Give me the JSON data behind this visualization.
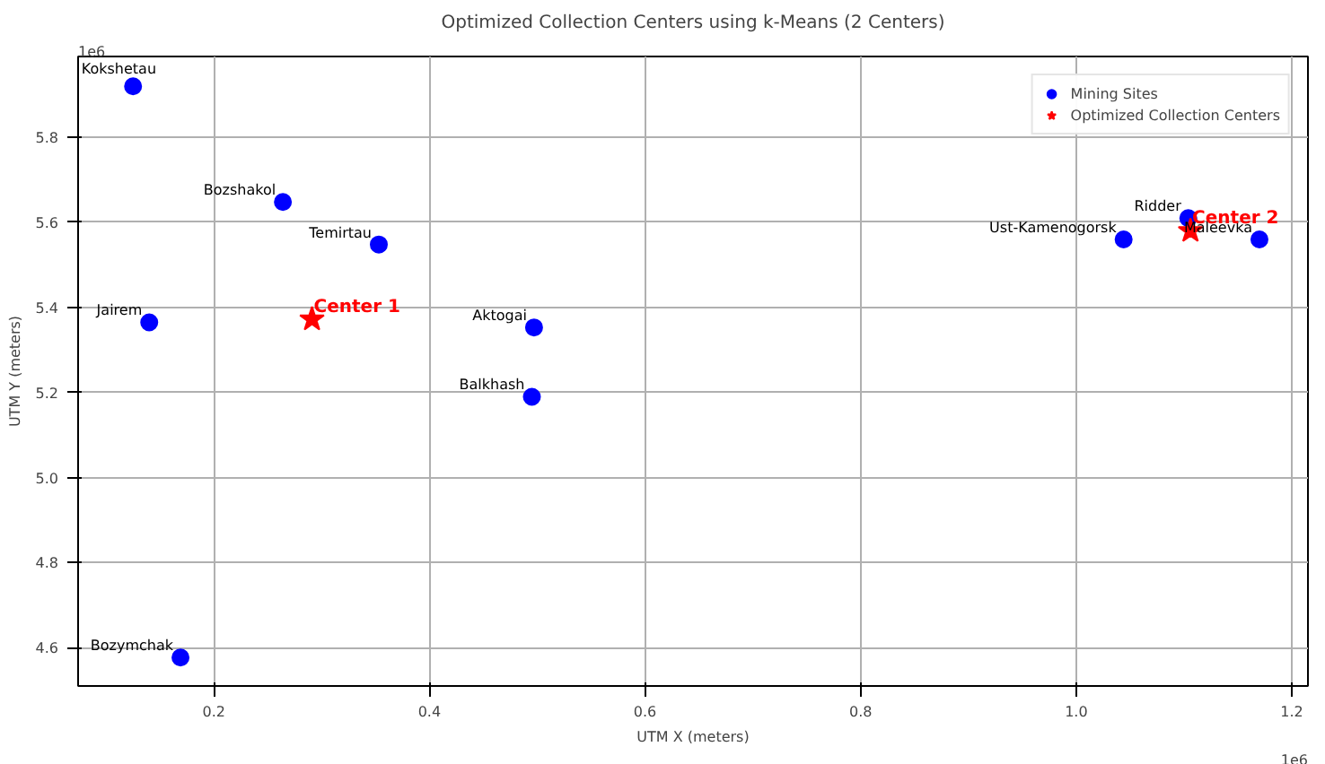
{
  "chart_data": {
    "type": "scatter",
    "title": "Optimized Collection Centers using k-Means (2 Centers)",
    "xlabel": "UTM X (meters)",
    "ylabel": "UTM Y (meters)",
    "xlim": [
      0.074,
      1.215
    ],
    "ylim": [
      4.51,
      5.99
    ],
    "xticks": [
      0.2,
      0.4,
      0.6,
      0.8,
      {
        "value": 1,
        "label": "1.0"
      },
      1.2
    ],
    "yticks": [
      4.6,
      4.8,
      {
        "value": 5,
        "label": "5.0"
      },
      5.2,
      5.4,
      5.6,
      5.8
    ],
    "grid": true,
    "legend": "top right",
    "series": [
      {
        "name": "Mining Sites",
        "color": "#0000ff",
        "marker": "circle",
        "x": [
          0.125,
          0.264,
          0.353,
          0.14,
          0.497,
          0.495,
          0.169,
          1.044,
          1.104,
          1.17
        ],
        "values": [
          5.92,
          5.648,
          5.548,
          5.365,
          5.353,
          5.19,
          4.577,
          5.56,
          5.61,
          5.56
        ]
      },
      {
        "name": "Optimized Collection Centers",
        "color": "#ff0000",
        "marker": "star",
        "x": [
          0.291,
          1.106
        ],
        "values": [
          5.372,
          5.58
        ]
      }
    ],
    "annotations": [
      {
        "text": "Kokshetau",
        "x": 0.125,
        "y": 5.92
      },
      {
        "text": "Bozshakol",
        "x": 0.264,
        "y": 5.648
      },
      {
        "text": "Temirtau",
        "x": 0.353,
        "y": 5.548
      },
      {
        "text": "Jairem",
        "x": 0.14,
        "y": 5.365
      },
      {
        "text": "Aktogai",
        "x": 0.497,
        "y": 5.353
      },
      {
        "text": "Balkhash",
        "x": 0.495,
        "y": 5.19
      },
      {
        "text": "Bozymchak",
        "x": 0.169,
        "y": 4.577
      },
      {
        "text": "Ust-Kamenogorsk",
        "x": 1.044,
        "y": 5.56
      },
      {
        "text": "Ridder",
        "x": 1.104,
        "y": 5.61
      },
      {
        "text": "Maleevka",
        "x": 1.17,
        "y": 5.56
      },
      {
        "text": "Center 1",
        "x": 0.291,
        "y": 5.372
      },
      {
        "text": "Center 2",
        "x": 1.106,
        "y": 5.58
      },
      "1e6",
      "1e6"
    ]
  }
}
